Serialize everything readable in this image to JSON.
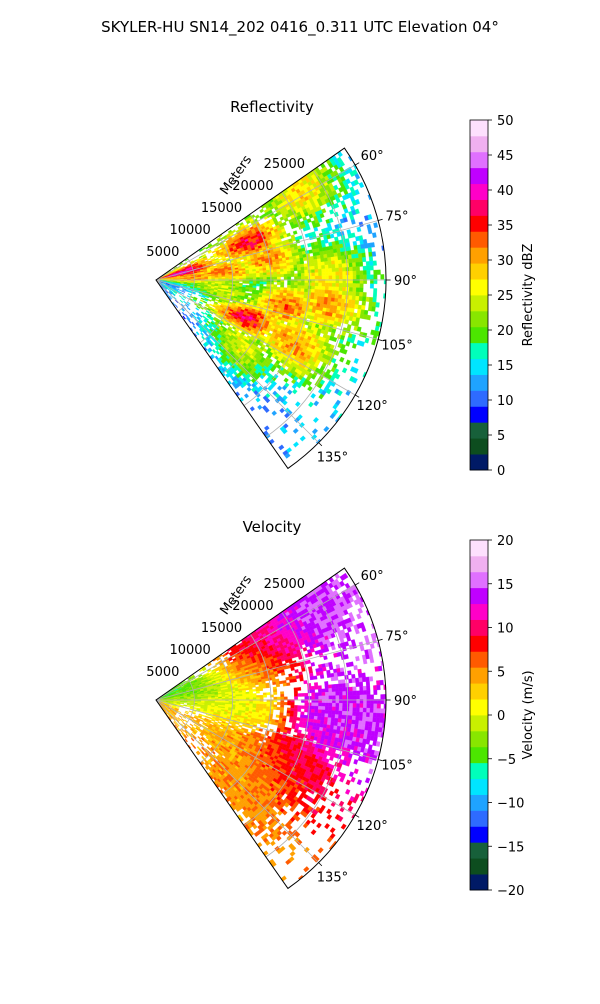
{
  "figure": {
    "title": "SKYLER-HU  SN14_202  0416_0.311 UTC Elevation 04°"
  },
  "chart_data": [
    {
      "type": "heatmap",
      "panel": "reflectivity",
      "title": "Reflectivity",
      "projection": "polar sector",
      "range_axis_label": "Meters",
      "range_ticks": [
        "5000",
        "10000",
        "15000",
        "20000",
        "25000"
      ],
      "range_tick_values": [
        5000,
        10000,
        15000,
        20000,
        25000
      ],
      "range_max": 30000,
      "azimuth_ticks": [
        "60°",
        "75°",
        "90°",
        "105°",
        "120°",
        "135°"
      ],
      "azimuth_tick_values": [
        60,
        75,
        90,
        105,
        120,
        135
      ],
      "azimuth_range": [
        55,
        145
      ],
      "grid": true,
      "colorbar": {
        "label": "Reflectivity dBZ",
        "range": [
          0,
          50
        ],
        "ticks": [
          "0",
          "5",
          "10",
          "15",
          "20",
          "25",
          "30",
          "35",
          "40",
          "45",
          "50"
        ],
        "tick_values": [
          0,
          5,
          10,
          15,
          20,
          25,
          30,
          35,
          40,
          45,
          50
        ],
        "colors": [
          "#001a66",
          "#0d4d1f",
          "#17603a",
          "#0000ff",
          "#2e6bff",
          "#1fa3ff",
          "#00e5ff",
          "#00ffbb",
          "#4ce600",
          "#88e600",
          "#c8f000",
          "#ffff00",
          "#ffd000",
          "#ffa000",
          "#ff5a00",
          "#ff0000",
          "#ff0066",
          "#ff00c8",
          "#c000ff",
          "#e070ff",
          "#f0b0f0",
          "#fde0fd"
        ]
      },
      "echo_cells": [
        {
          "range": 3500,
          "azimuth": 75,
          "value": 38
        },
        {
          "range": 5000,
          "azimuth": 88,
          "value": 28
        },
        {
          "range": 9000,
          "azimuth": 84,
          "value": 27
        },
        {
          "range": 13000,
          "azimuth": 68,
          "value": 33
        },
        {
          "range": 15000,
          "azimuth": 80,
          "value": 26
        },
        {
          "range": 17000,
          "azimuth": 100,
          "value": 28
        },
        {
          "range": 12500,
          "azimuth": 112,
          "value": 36
        },
        {
          "range": 22000,
          "azimuth": 58,
          "value": 24
        },
        {
          "range": 22500,
          "azimuth": 87,
          "value": 20
        },
        {
          "range": 22500,
          "azimuth": 96,
          "value": 30
        },
        {
          "range": 20000,
          "azimuth": 115,
          "value": 26
        },
        {
          "range": 14000,
          "azimuth": 130,
          "value": 20
        },
        {
          "range": 8000,
          "azimuth": 98,
          "value": 15
        }
      ]
    },
    {
      "type": "heatmap",
      "panel": "velocity",
      "title": "Velocity",
      "projection": "polar sector",
      "range_axis_label": "Meters",
      "range_ticks": [
        "5000",
        "10000",
        "15000",
        "20000",
        "25000"
      ],
      "range_tick_values": [
        5000,
        10000,
        15000,
        20000,
        25000
      ],
      "range_max": 30000,
      "azimuth_ticks": [
        "60°",
        "75°",
        "90°",
        "105°",
        "120°",
        "135°"
      ],
      "azimuth_tick_values": [
        60,
        75,
        90,
        105,
        120,
        135
      ],
      "azimuth_range": [
        55,
        145
      ],
      "grid": true,
      "colorbar": {
        "label": "Velocity (m/s)",
        "range": [
          -20,
          20
        ],
        "ticks": [
          "−20",
          "−15",
          "−10",
          "−5",
          "0",
          "5",
          "10",
          "15",
          "20"
        ],
        "tick_values": [
          -20,
          -15,
          -10,
          -5,
          0,
          5,
          10,
          15,
          20
        ],
        "colors": [
          "#001a66",
          "#0d4d1f",
          "#17603a",
          "#0000ff",
          "#2e6bff",
          "#1fa3ff",
          "#00e5ff",
          "#00ffbb",
          "#4ce600",
          "#88e600",
          "#c8f000",
          "#ffff00",
          "#ffd000",
          "#ffa000",
          "#ff5a00",
          "#ff0000",
          "#ff0066",
          "#ff00c8",
          "#c000ff",
          "#e070ff",
          "#f0b0f0",
          "#fde0fd"
        ]
      },
      "echo_cells": [
        {
          "range": 5000,
          "azimuth": 72,
          "value": -5
        },
        {
          "range": 6000,
          "azimuth": 85,
          "value": -2
        },
        {
          "range": 12000,
          "azimuth": 72,
          "value": 5
        },
        {
          "range": 10000,
          "azimuth": 95,
          "value": 1
        },
        {
          "range": 16000,
          "azimuth": 63,
          "value": 10
        },
        {
          "range": 22000,
          "azimuth": 60,
          "value": 15
        },
        {
          "range": 24000,
          "azimuth": 95,
          "value": 14
        },
        {
          "range": 12000,
          "azimuth": 120,
          "value": 4
        },
        {
          "range": 19000,
          "azimuth": 115,
          "value": 9
        },
        {
          "range": 16000,
          "azimuth": 132,
          "value": 5
        }
      ]
    }
  ]
}
